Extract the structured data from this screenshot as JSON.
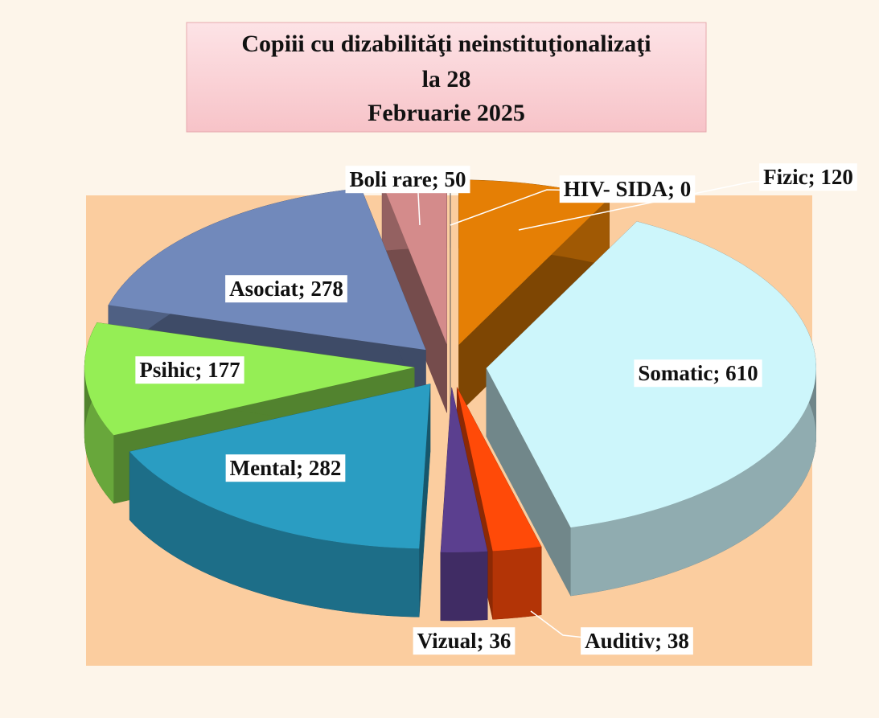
{
  "chart_data": {
    "type": "pie",
    "title": [
      "Copiii cu dizabilităţi neinstituţionalizaţi",
      "la 28",
      "Februarie 2025"
    ],
    "categories": [
      "Fizic",
      "Somatic",
      "Auditiv",
      "Vizual",
      "Mental",
      "Psihic",
      "Asociat",
      "Boli rare",
      "HIV- SIDA"
    ],
    "values": [
      120,
      610,
      38,
      36,
      282,
      177,
      278,
      50,
      0
    ],
    "value_labels": [
      "Fizic; 120",
      "Somatic; 610",
      "Auditiv; 38",
      "Vizual; 36",
      "Mental; 282",
      "Psihic; 177",
      "Asociat; 278",
      "Boli rare; 50",
      "HIV- SIDA; 0"
    ],
    "colors": [
      "#e57f05",
      "#cdf6fb",
      "#ff4a08",
      "#5b3f8f",
      "#2a9dc2",
      "#95ee55",
      "#7189bb",
      "#d48b8b",
      "#9a9a9a"
    ]
  }
}
